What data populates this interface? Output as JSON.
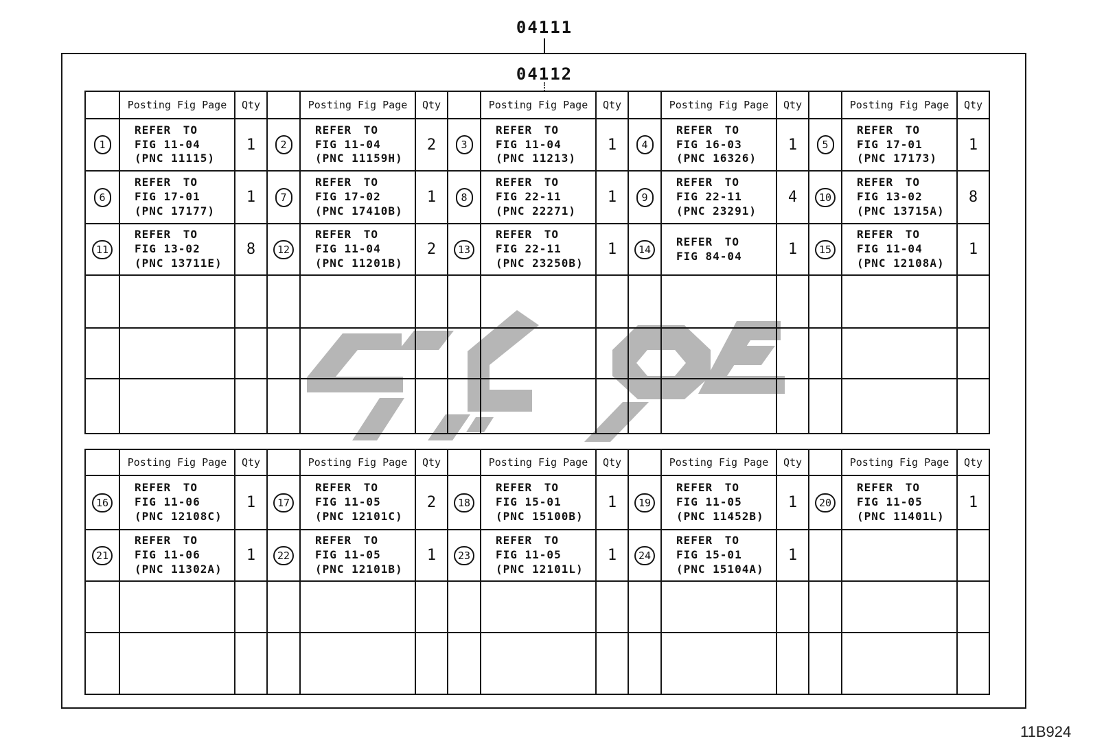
{
  "page": {
    "top_label": "04111",
    "sub_label": "04112",
    "doc_code": "11B924",
    "colors": {
      "line": "#161616",
      "watermark": "#b6b6b6",
      "background": "#ffffff"
    }
  },
  "labels": {
    "refer_to": "REFER TO"
  },
  "table_header": {
    "posting_label": "Posting Fig Page",
    "qty_label": "Qty"
  },
  "table1": {
    "empty_rows": 3,
    "data_rows": [
      [
        {
          "num": "1",
          "fig": "FIG 11-04",
          "pnc": "(PNC 11115)",
          "qty": "1"
        },
        {
          "num": "2",
          "fig": "FIG 11-04",
          "pnc": "(PNC 11159H)",
          "qty": "2"
        },
        {
          "num": "3",
          "fig": "FIG 11-04",
          "pnc": "(PNC 11213)",
          "qty": "1"
        },
        {
          "num": "4",
          "fig": "FIG 16-03",
          "pnc": "(PNC 16326)",
          "qty": "1"
        },
        {
          "num": "5",
          "fig": "FIG 17-01",
          "pnc": "(PNC 17173)",
          "qty": "1"
        }
      ],
      [
        {
          "num": "6",
          "fig": "FIG 17-01",
          "pnc": "(PNC 17177)",
          "qty": "1"
        },
        {
          "num": "7",
          "fig": "FIG 17-02",
          "pnc": "(PNC 17410B)",
          "qty": "1"
        },
        {
          "num": "8",
          "fig": "FIG 22-11",
          "pnc": "(PNC 22271)",
          "qty": "1"
        },
        {
          "num": "9",
          "fig": "FIG 22-11",
          "pnc": "(PNC 23291)",
          "qty": "4"
        },
        {
          "num": "10",
          "fig": "FIG 13-02",
          "pnc": "(PNC 13715A)",
          "qty": "8"
        }
      ],
      [
        {
          "num": "11",
          "fig": "FIG 13-02",
          "pnc": "(PNC 13711E)",
          "qty": "8"
        },
        {
          "num": "12",
          "fig": "FIG 11-04",
          "pnc": "(PNC 11201B)",
          "qty": "2"
        },
        {
          "num": "13",
          "fig": "FIG 22-11",
          "pnc": "(PNC 23250B)",
          "qty": "1"
        },
        {
          "num": "14",
          "fig": "FIG 84-04",
          "pnc": "",
          "qty": "1"
        },
        {
          "num": "15",
          "fig": "FIG 11-04",
          "pnc": "(PNC 12108A)",
          "qty": "1"
        }
      ]
    ]
  },
  "table2": {
    "empty_rows": 2,
    "data_rows": [
      [
        {
          "num": "16",
          "fig": "FIG 11-06",
          "pnc": "(PNC 12108C)",
          "qty": "1"
        },
        {
          "num": "17",
          "fig": "FIG 11-05",
          "pnc": "(PNC 12101C)",
          "qty": "2"
        },
        {
          "num": "18",
          "fig": "FIG 15-01",
          "pnc": "(PNC 15100B)",
          "qty": "1"
        },
        {
          "num": "19",
          "fig": "FIG 11-05",
          "pnc": "(PNC 11452B)",
          "qty": "1"
        },
        {
          "num": "20",
          "fig": "FIG 11-05",
          "pnc": "(PNC 11401L)",
          "qty": "1"
        }
      ],
      [
        {
          "num": "21",
          "fig": "FIG 11-06",
          "pnc": "(PNC 11302A)",
          "qty": "1"
        },
        {
          "num": "22",
          "fig": "FIG 11-05",
          "pnc": "(PNC 12101B)",
          "qty": "1"
        },
        {
          "num": "23",
          "fig": "FIG 11-05",
          "pnc": "(PNC 12101L)",
          "qty": "1"
        },
        {
          "num": "24",
          "fig": "FIG 15-01",
          "pnc": "(PNC 15104A)",
          "qty": "1"
        },
        null
      ]
    ]
  }
}
